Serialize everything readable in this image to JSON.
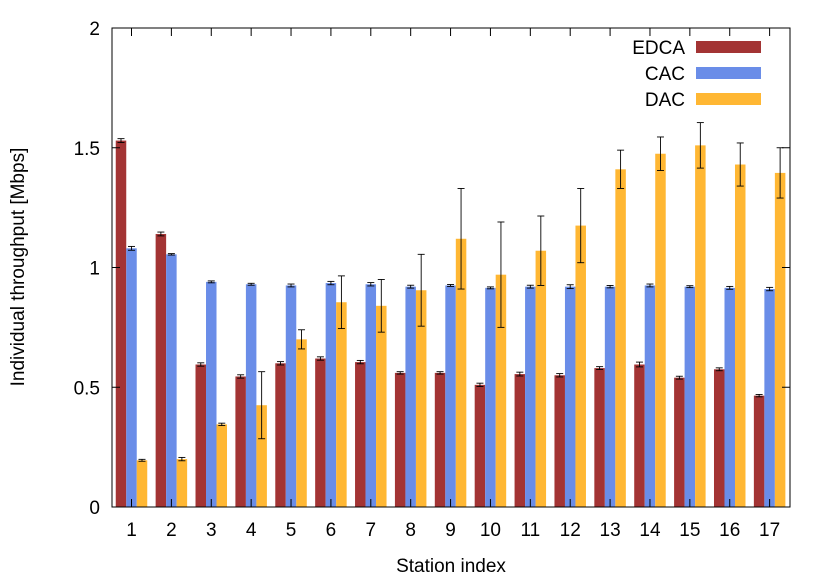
{
  "chart_data": {
    "type": "bar",
    "title": "",
    "xlabel": "Station index",
    "ylabel": "Individual throughput [Mbps]",
    "ylim": [
      0,
      2
    ],
    "yticks": [
      "0",
      "0.5",
      "1",
      "1.5",
      "2"
    ],
    "categories": [
      "1",
      "2",
      "3",
      "4",
      "5",
      "6",
      "7",
      "8",
      "9",
      "10",
      "11",
      "12",
      "13",
      "14",
      "15",
      "16",
      "17"
    ],
    "legend_position": "top-right",
    "grid": false,
    "series": [
      {
        "name": "EDCA",
        "color": "#a33434",
        "values": [
          1.53,
          1.14,
          0.595,
          0.545,
          0.6,
          0.62,
          0.605,
          0.56,
          0.56,
          0.51,
          0.555,
          0.55,
          0.58,
          0.595,
          0.54,
          0.575,
          0.465
        ],
        "errors": [
          0.008,
          0.008,
          0.007,
          0.007,
          0.007,
          0.007,
          0.007,
          0.005,
          0.005,
          0.007,
          0.008,
          0.007,
          0.006,
          0.01,
          0.006,
          0.006,
          0.005
        ]
      },
      {
        "name": "CAC",
        "color": "#6a8de8",
        "values": [
          1.08,
          1.055,
          0.94,
          0.93,
          0.925,
          0.935,
          0.93,
          0.92,
          0.925,
          0.915,
          0.92,
          0.92,
          0.92,
          0.925,
          0.92,
          0.915,
          0.91
        ],
        "errors": [
          0.008,
          0.003,
          0.004,
          0.004,
          0.006,
          0.007,
          0.007,
          0.006,
          0.004,
          0.004,
          0.006,
          0.008,
          0.005,
          0.006,
          0.004,
          0.006,
          0.007
        ]
      },
      {
        "name": "DAC",
        "color": "#ffb733",
        "values": [
          0.195,
          0.2,
          0.345,
          0.425,
          0.7,
          0.855,
          0.84,
          0.905,
          1.12,
          0.97,
          1.07,
          1.175,
          1.41,
          1.475,
          1.51,
          1.43,
          1.395
        ],
        "errors": [
          0.004,
          0.007,
          0.005,
          0.14,
          0.04,
          0.11,
          0.11,
          0.15,
          0.21,
          0.22,
          0.145,
          0.155,
          0.08,
          0.07,
          0.095,
          0.09,
          0.105
        ]
      }
    ]
  }
}
